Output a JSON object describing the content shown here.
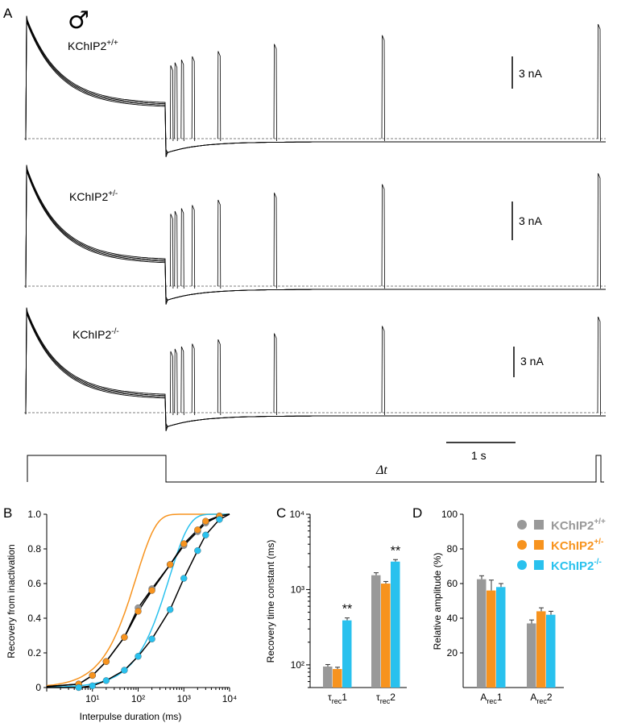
{
  "panels": {
    "A": {
      "label": "A",
      "sex_symbol": "♂",
      "traces": [
        {
          "name": "KChIP2",
          "superscript": "+/+",
          "scale": "3 nA"
        },
        {
          "name": "KChIP2",
          "superscript": "+/-",
          "scale": "3 nA"
        },
        {
          "name": "KChIP2",
          "superscript": "-/-",
          "scale": "3 nA"
        }
      ],
      "time_scale": "1 s",
      "protocol_label": "Δt",
      "interpulse_fractions": [
        0.01,
        0.02,
        0.035,
        0.06,
        0.12,
        0.25,
        0.5,
        1.0
      ]
    },
    "B": {
      "label": "B"
    },
    "C": {
      "label": "C"
    },
    "D": {
      "label": "D"
    }
  },
  "legend": [
    {
      "name": "KChIP2",
      "superscript": "+/+",
      "color": "#999999"
    },
    {
      "name": "KChIP2",
      "superscript": "+/-",
      "color": "#f7931e"
    },
    {
      "name": "KChIP2",
      "superscript": "-/-",
      "color": "#29c1ee"
    }
  ],
  "chart_data": [
    {
      "panel": "B",
      "type": "scatter",
      "xlabel": "Interpulse duration (ms)",
      "ylabel": "Recovery from inactivation",
      "x_scale": "log",
      "xlim": [
        1,
        10000
      ],
      "ylim": [
        0,
        1.0
      ],
      "x_tick_labels": [
        "10¹",
        "10²",
        "10³",
        "10⁴"
      ],
      "y_tick_labels": [
        "0",
        "0.2",
        "0.4",
        "0.6",
        "0.8",
        "1.0"
      ],
      "x": [
        5,
        10,
        20,
        50,
        100,
        200,
        500,
        1000,
        2000,
        3000,
        6000
      ],
      "series": [
        {
          "name": "KChIP2+/+",
          "color": "#999999",
          "values": [
            0.02,
            0.07,
            0.15,
            0.29,
            0.46,
            0.57,
            0.71,
            0.82,
            0.9,
            0.95,
            0.99
          ]
        },
        {
          "name": "KChIP2+/-",
          "color": "#f7931e",
          "values": [
            0.02,
            0.07,
            0.15,
            0.29,
            0.44,
            0.56,
            0.71,
            0.83,
            0.91,
            0.96,
            0.99
          ]
        },
        {
          "name": "KChIP2-/-",
          "color": "#29c1ee",
          "values": [
            0.0,
            0.01,
            0.04,
            0.1,
            0.18,
            0.28,
            0.45,
            0.63,
            0.79,
            0.88,
            0.97
          ]
        }
      ]
    },
    {
      "panel": "C",
      "type": "bar",
      "ylabel": "Recovery time constant (ms)",
      "y_scale": "log",
      "ylim": [
        50,
        10000
      ],
      "y_tick_labels": [
        "10²",
        "10³",
        "10⁴"
      ],
      "categories": [
        {
          "main": "τ",
          "sub": "rec",
          "tail": "1"
        },
        {
          "main": "τ",
          "sub": "rec",
          "tail": "2"
        }
      ],
      "series": [
        {
          "name": "KChIP2+/+",
          "color": "#999999",
          "values": [
            95,
            1550
          ],
          "errors": [
            6,
            120
          ]
        },
        {
          "name": "KChIP2+/-",
          "color": "#f7931e",
          "values": [
            88,
            1200
          ],
          "errors": [
            5,
            80
          ]
        },
        {
          "name": "KChIP2-/-",
          "color": "#29c1ee",
          "values": [
            390,
            2350
          ],
          "errors": [
            30,
            150
          ]
        }
      ],
      "annotations": [
        "**",
        "**"
      ]
    },
    {
      "panel": "D",
      "type": "bar",
      "ylabel": "Relative amplitude (%)",
      "ylim": [
        0,
        100
      ],
      "y_tick_labels": [
        "20",
        "40",
        "60",
        "80",
        "100"
      ],
      "categories": [
        {
          "main": "A",
          "sub": "rec",
          "tail": "1"
        },
        {
          "main": "A",
          "sub": "rec",
          "tail": "2"
        }
      ],
      "series": [
        {
          "name": "KChIP2+/+",
          "color": "#999999",
          "values": [
            62.5,
            37
          ],
          "errors": [
            2,
            2
          ]
        },
        {
          "name": "KChIP2+/-",
          "color": "#f7931e",
          "values": [
            56,
            44
          ],
          "errors": [
            6,
            2
          ]
        },
        {
          "name": "KChIP2-/-",
          "color": "#29c1ee",
          "values": [
            58,
            42
          ],
          "errors": [
            2,
            2
          ]
        }
      ]
    }
  ]
}
